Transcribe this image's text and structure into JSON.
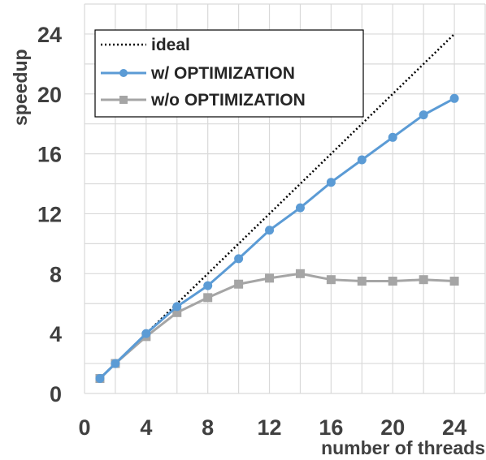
{
  "chart_data": {
    "type": "line",
    "xlabel": "number of threads",
    "ylabel": "speedup",
    "xlim": [
      0,
      26
    ],
    "ylim": [
      0,
      26
    ],
    "xticks": [
      0,
      4,
      8,
      12,
      16,
      20,
      24
    ],
    "yticks": [
      0,
      4,
      8,
      12,
      16,
      20,
      24
    ],
    "grid": true,
    "legend_position": "top-left",
    "series": [
      {
        "name": "ideal",
        "style": "dotted",
        "color": "#000000",
        "x": [
          1,
          24
        ],
        "y": [
          1,
          24
        ]
      },
      {
        "name": "w/ OPTIMIZATION",
        "style": "solid",
        "marker": "circle",
        "color": "#5b9bd5",
        "x": [
          1,
          2,
          4,
          6,
          8,
          10,
          12,
          14,
          16,
          18,
          20,
          22,
          24
        ],
        "y": [
          1.0,
          2.0,
          4.0,
          5.8,
          7.2,
          9.0,
          10.9,
          12.4,
          14.1,
          15.6,
          17.1,
          18.6,
          19.7
        ]
      },
      {
        "name": "w/o OPTIMIZATION",
        "style": "solid",
        "marker": "square",
        "color": "#a5a5a5",
        "x": [
          1,
          2,
          4,
          6,
          8,
          10,
          12,
          14,
          16,
          18,
          20,
          22,
          24
        ],
        "y": [
          1.0,
          2.0,
          3.8,
          5.4,
          6.4,
          7.3,
          7.7,
          8.0,
          7.6,
          7.5,
          7.5,
          7.6,
          7.5
        ]
      }
    ]
  }
}
